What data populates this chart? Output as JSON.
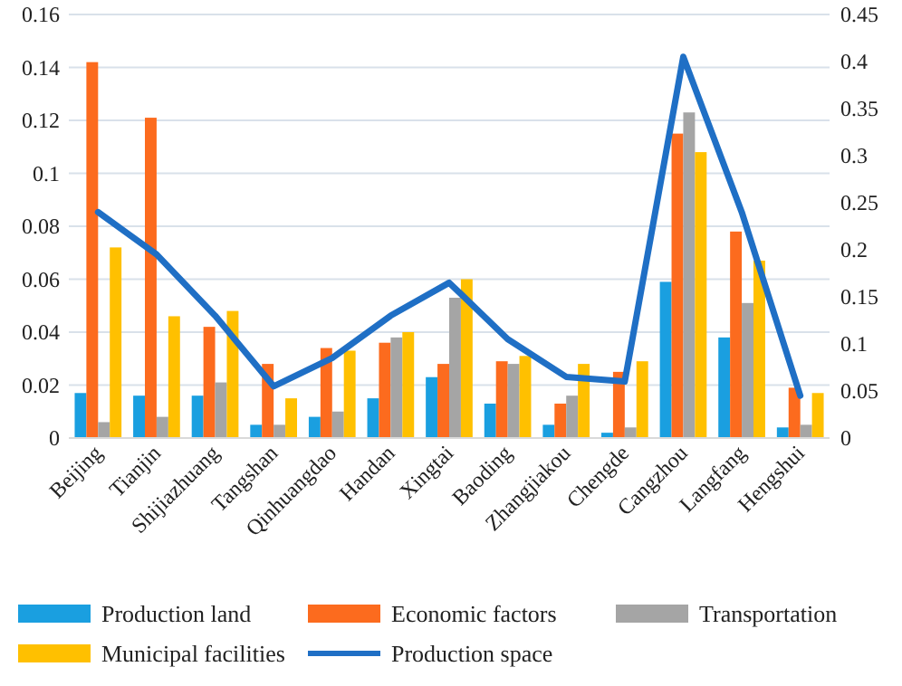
{
  "chart_data": {
    "type": "bar",
    "categories": [
      "Beijing",
      "Tianjin",
      "Shijiazhuang",
      "Tangshan",
      "Qinhuangdao",
      "Handan",
      "Xingtai",
      "Baoding",
      "Zhangjiakou",
      "Chengde",
      "Cangzhou",
      "Langfang",
      "Hengshui"
    ],
    "series": [
      {
        "name": "Production land",
        "color": "#1a9fe0",
        "values": [
          0.017,
          0.016,
          0.016,
          0.005,
          0.008,
          0.015,
          0.023,
          0.013,
          0.005,
          0.002,
          0.059,
          0.038,
          0.004
        ]
      },
      {
        "name": "Economic factors",
        "color": "#fc6b1e",
        "values": [
          0.142,
          0.121,
          0.042,
          0.028,
          0.034,
          0.036,
          0.028,
          0.029,
          0.013,
          0.025,
          0.115,
          0.078,
          0.019
        ]
      },
      {
        "name": "Transportation",
        "color": "#a5a5a5",
        "values": [
          0.006,
          0.008,
          0.021,
          0.005,
          0.01,
          0.038,
          0.053,
          0.028,
          0.016,
          0.004,
          0.123,
          0.051,
          0.005
        ]
      },
      {
        "name": "Municipal facilities",
        "color": "#ffc000",
        "values": [
          0.072,
          0.046,
          0.048,
          0.015,
          0.033,
          0.04,
          0.06,
          0.031,
          0.028,
          0.029,
          0.108,
          0.067,
          0.017
        ]
      },
      {
        "name": "Production space",
        "color": "#1f6fc5",
        "type": "line",
        "axis": "y2",
        "values": [
          0.24,
          0.195,
          0.13,
          0.055,
          0.085,
          0.13,
          0.165,
          0.105,
          0.065,
          0.06,
          0.405,
          0.24,
          0.045
        ]
      }
    ],
    "ylim": [
      0,
      0.16
    ],
    "yticks": [
      0,
      0.02,
      0.04,
      0.06,
      0.08,
      0.1,
      0.12,
      0.14,
      0.16
    ],
    "y2lim": [
      0,
      0.45
    ],
    "y2ticks": [
      0,
      0.05,
      0.1,
      0.15,
      0.2,
      0.25,
      0.3,
      0.35,
      0.4,
      0.45
    ],
    "grid": "y",
    "legend": "bottom",
    "marker": "none",
    "line_style": "solid"
  }
}
